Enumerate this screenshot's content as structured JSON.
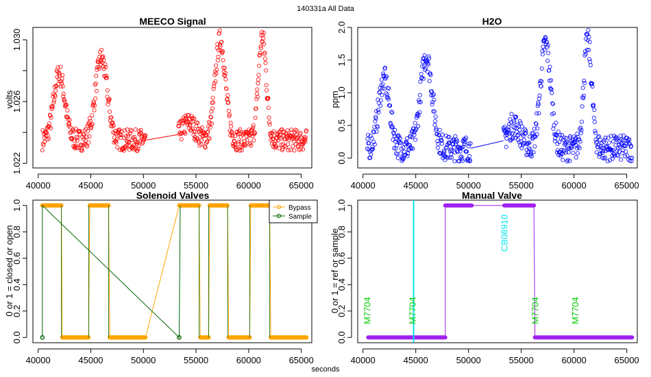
{
  "figure": {
    "title": "140331a   All Data",
    "xlabel": "seconds"
  },
  "chart_data": [
    {
      "id": "meeco",
      "type": "scatter",
      "title": "MEECO Signal",
      "ylabel": "volts",
      "xlim": [
        39500,
        66000
      ],
      "ylim": [
        1.0217,
        1.0308
      ],
      "xticks": [
        40000,
        45000,
        50000,
        55000,
        60000,
        65000
      ],
      "yticks": [
        1.022,
        1.024,
        1.026,
        1.028,
        1.03
      ],
      "ytick_labels": [
        "1.022",
        "",
        "1.026",
        "",
        "1.030"
      ],
      "color": "#ff0000",
      "gap": [
        50200,
        53300
      ],
      "baseline": 1.0235,
      "noise": 0.0007,
      "peaks": [
        {
          "x": 42000,
          "w": 700,
          "y": 1.0278
        },
        {
          "x": 46000,
          "w": 750,
          "y": 1.0288
        },
        {
          "x": 54300,
          "w": 900,
          "y": 1.0246
        },
        {
          "x": 57300,
          "w": 650,
          "y": 1.03
        },
        {
          "x": 61300,
          "w": 500,
          "y": 1.0302
        }
      ]
    },
    {
      "id": "h2o",
      "type": "scatter",
      "title": "H2O",
      "ylabel": "ppm",
      "xlim": [
        39500,
        66000
      ],
      "ylim": [
        -0.15,
        2.0
      ],
      "xticks": [
        40000,
        45000,
        50000,
        55000,
        60000,
        65000
      ],
      "yticks": [
        0,
        0.5,
        1,
        1.5,
        2
      ],
      "ytick_labels": [
        "0.0",
        "0.5",
        "1.0",
        "1.5",
        "2.0"
      ],
      "color": "#0000ff",
      "gap": [
        50200,
        53300
      ],
      "baseline": 0.15,
      "noise": 0.2,
      "peaks": [
        {
          "x": 42000,
          "w": 700,
          "y": 1.2
        },
        {
          "x": 46000,
          "w": 750,
          "y": 1.55
        },
        {
          "x": 54300,
          "w": 900,
          "y": 0.5
        },
        {
          "x": 57300,
          "w": 650,
          "y": 1.75
        },
        {
          "x": 61300,
          "w": 500,
          "y": 1.8
        }
      ]
    },
    {
      "id": "solenoid",
      "type": "line",
      "title": "Solenoid Valves",
      "ylabel": "0 or 1 = closed or open",
      "xlim": [
        39500,
        66000
      ],
      "ylim": [
        -0.04,
        1.04
      ],
      "xticks": [
        40000,
        45000,
        50000,
        55000,
        60000,
        65000
      ],
      "yticks": [
        0,
        0.2,
        0.4,
        0.6,
        0.8,
        1
      ],
      "ytick_labels": [
        "0.0",
        "0.2",
        "0.4",
        "0.6",
        "0.8",
        "1.0"
      ],
      "legend": {
        "position": "top-right"
      },
      "series": [
        {
          "name": "Bypass",
          "color": "#ffa500",
          "segments": [
            {
              "x0": 40400,
              "x1": 42200,
              "y": 1
            },
            {
              "x0": 42300,
              "x1": 44800,
              "y": 0
            },
            {
              "x0": 44900,
              "x1": 46700,
              "y": 1
            },
            {
              "x0": 46800,
              "x1": 50200,
              "y": 0
            },
            {
              "x0": 53400,
              "x1": 55300,
              "y": 1
            },
            {
              "x0": 55400,
              "x1": 56200,
              "y": 0
            },
            {
              "x0": 56300,
              "x1": 58000,
              "y": 1
            },
            {
              "x0": 58100,
              "x1": 60100,
              "y": 0
            },
            {
              "x0": 60200,
              "x1": 62000,
              "y": 1
            },
            {
              "x0": 62100,
              "x1": 65500,
              "y": 0
            }
          ]
        },
        {
          "name": "Sample",
          "color": "#006400",
          "points": [
            {
              "x": 40400,
              "y": 0
            },
            {
              "x": 40400,
              "y": 1
            },
            {
              "x": 53400,
              "y": 0
            },
            {
              "x": 53500,
              "y": 1
            }
          ]
        }
      ]
    },
    {
      "id": "manual",
      "type": "line",
      "title": "Manual Valve",
      "ylabel": "0 or 1 = ref or sample",
      "xlim": [
        39500,
        66000
      ],
      "ylim": [
        -0.04,
        1.04
      ],
      "xticks": [
        40000,
        45000,
        50000,
        55000,
        60000,
        65000
      ],
      "yticks": [
        0,
        0.2,
        0.4,
        0.6,
        0.8,
        1
      ],
      "ytick_labels": [
        "0.0",
        "0.2",
        "0.4",
        "0.6",
        "0.8",
        "1.0"
      ],
      "color": "#a020f0",
      "segments": [
        {
          "x0": 40500,
          "x1": 47800,
          "y": 0
        },
        {
          "x0": 47800,
          "x1": 50300,
          "y": 1
        },
        {
          "x0": 53400,
          "x1": 56200,
          "y": 1
        },
        {
          "x0": 56300,
          "x1": 65500,
          "y": 0
        }
      ],
      "vline": {
        "x": 44800,
        "color": "#00e5ee"
      },
      "annotations": [
        {
          "text": "M7704",
          "x": 40700,
          "y": 0.1,
          "color": "#00cc00"
        },
        {
          "text": "M7704",
          "x": 45000,
          "y": 0.1,
          "color": "#00cc00"
        },
        {
          "text": "CB08910",
          "x": 53700,
          "y": 0.65,
          "color": "#00e5ee"
        },
        {
          "text": "M7704",
          "x": 56600,
          "y": 0.1,
          "color": "#00cc00"
        },
        {
          "text": "M7704",
          "x": 60400,
          "y": 0.1,
          "color": "#00cc00"
        }
      ]
    }
  ]
}
